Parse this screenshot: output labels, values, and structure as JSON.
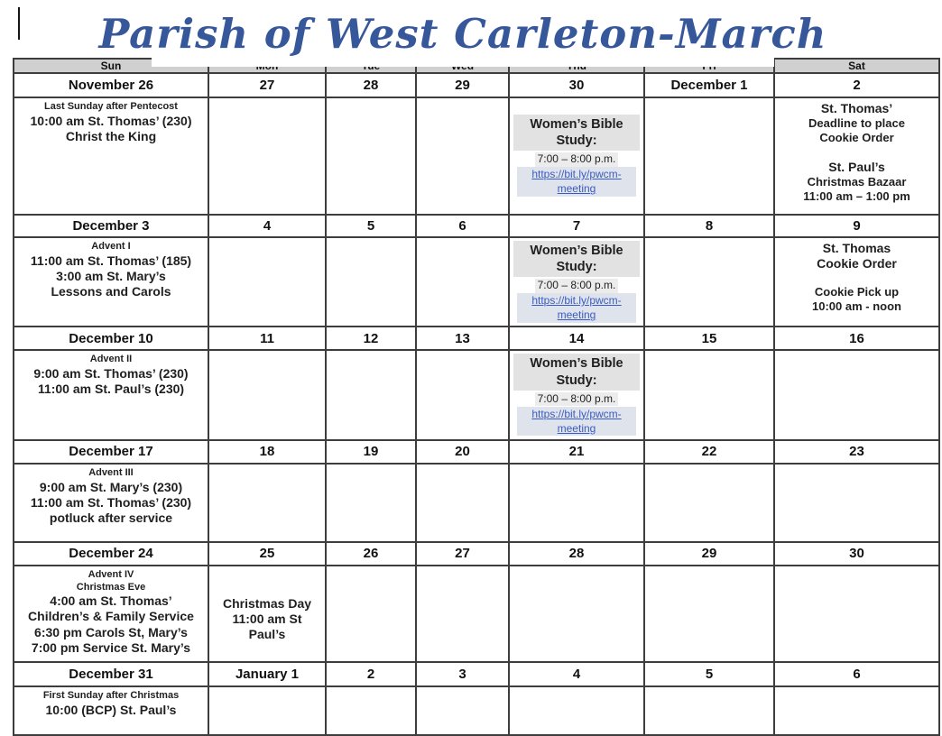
{
  "title": "Parish of West Carleton-March",
  "day_headers": [
    "Sun",
    "Mon",
    "Tue",
    "Wed",
    "Thu",
    "Fri",
    "Sat"
  ],
  "colors": {
    "title_blue": "#36589a",
    "link_blue": "#3a5cc0",
    "header_gray": "#d0d0d0",
    "highlight_gray": "#e2e2e2"
  },
  "weeks": [
    {
      "dates": [
        "November 26",
        "27",
        "28",
        "29",
        "30",
        "December 1",
        "2"
      ],
      "cells": [
        {
          "lines": [
            {
              "t": "Last Sunday after Pentecost",
              "s": "sub"
            },
            {
              "t": "10:00 am St. Thomas’ (230)",
              "s": "event"
            },
            {
              "t": "Christ the King",
              "s": "event"
            }
          ]
        },
        {
          "lines": []
        },
        {
          "lines": []
        },
        {
          "lines": []
        },
        {
          "lines": [
            {
              "t": "",
              "s": "blank"
            },
            {
              "t": "Women’s Bible Study:",
              "s": "wbs"
            },
            {
              "t": "7:00 – 8:00 p.m.",
              "s": "time"
            },
            {
              "t": "https://bit.ly/pwcm-meeting",
              "s": "link"
            }
          ]
        },
        {
          "lines": []
        },
        {
          "lines": [
            {
              "t": "St. Thomas’",
              "s": "event"
            },
            {
              "t": "Deadline to place",
              "s": "event-sm"
            },
            {
              "t": "Cookie Order",
              "s": "event-sm"
            },
            {
              "t": "",
              "s": "blank"
            },
            {
              "t": "St. Paul’s",
              "s": "event"
            },
            {
              "t": "Christmas Bazaar",
              "s": "event-sm"
            },
            {
              "t": "11:00 am – 1:00 pm",
              "s": "event-sm"
            }
          ]
        }
      ]
    },
    {
      "dates": [
        "December 3",
        "4",
        "5",
        "6",
        "7",
        "8",
        "9"
      ],
      "cells": [
        {
          "lines": [
            {
              "t": "Advent I",
              "s": "sub"
            },
            {
              "t": "11:00 am St. Thomas’ (185)",
              "s": "event"
            },
            {
              "t": "3:00 am St. Mary’s",
              "s": "event"
            },
            {
              "t": "Lessons and Carols",
              "s": "event"
            }
          ]
        },
        {
          "lines": []
        },
        {
          "lines": []
        },
        {
          "lines": []
        },
        {
          "lines": [
            {
              "t": "Women’s Bible Study:",
              "s": "wbs"
            },
            {
              "t": "7:00 – 8:00 p.m.",
              "s": "time"
            },
            {
              "t": "https://bit.ly/pwcm-meeting",
              "s": "link"
            }
          ]
        },
        {
          "lines": []
        },
        {
          "lines": [
            {
              "t": "St. Thomas",
              "s": "event"
            },
            {
              "t": "Cookie Order",
              "s": "event"
            },
            {
              "t": "",
              "s": "blank"
            },
            {
              "t": "Cookie Pick up",
              "s": "event-sm"
            },
            {
              "t": "10:00 am - noon",
              "s": "event-sm"
            }
          ]
        }
      ]
    },
    {
      "dates": [
        "December 10",
        "11",
        "12",
        "13",
        "14",
        "15",
        "16"
      ],
      "cells": [
        {
          "lines": [
            {
              "t": "Advent II",
              "s": "sub"
            },
            {
              "t": "9:00 am St. Thomas’ (230)",
              "s": "event"
            },
            {
              "t": "11:00 am St. Paul’s (230)",
              "s": "event"
            }
          ]
        },
        {
          "lines": []
        },
        {
          "lines": []
        },
        {
          "lines": []
        },
        {
          "lines": [
            {
              "t": "Women’s Bible Study:",
              "s": "wbs"
            },
            {
              "t": "7:00 – 8:00 p.m.",
              "s": "time"
            },
            {
              "t": "https://bit.ly/pwcm-meeting",
              "s": "link"
            }
          ]
        },
        {
          "lines": []
        },
        {
          "lines": []
        }
      ]
    },
    {
      "dates": [
        "December 17",
        "18",
        "19",
        "20",
        "21",
        "22",
        "23"
      ],
      "cells": [
        {
          "lines": [
            {
              "t": "Advent III",
              "s": "sub"
            },
            {
              "t": "9:00 am St. Mary’s (230)",
              "s": "event"
            },
            {
              "t": "11:00 am St. Thomas’ (230)",
              "s": "event"
            },
            {
              "t": "potluck after service",
              "s": "event"
            }
          ]
        },
        {
          "lines": []
        },
        {
          "lines": []
        },
        {
          "lines": []
        },
        {
          "lines": []
        },
        {
          "lines": []
        },
        {
          "lines": []
        }
      ]
    },
    {
      "dates": [
        "December 24",
        "25",
        "26",
        "27",
        "28",
        "29",
        "30"
      ],
      "cells": [
        {
          "lines": [
            {
              "t": "Advent IV",
              "s": "sub"
            },
            {
              "t": "Christmas Eve",
              "s": "sub"
            },
            {
              "t": "4:00 am St. Thomas’",
              "s": "event"
            },
            {
              "t": "Children’s & Family Service",
              "s": "event"
            },
            {
              "t": "6:30 pm Carols St, Mary’s",
              "s": "event"
            },
            {
              "t": "7:00 pm Service St. Mary’s",
              "s": "event"
            }
          ]
        },
        {
          "lines": [
            {
              "t": "",
              "s": "blank"
            },
            {
              "t": "",
              "s": "blank"
            },
            {
              "t": "Christmas Day",
              "s": "event"
            },
            {
              "t": "11:00 am St",
              "s": "event"
            },
            {
              "t": "Paul’s",
              "s": "event"
            }
          ]
        },
        {
          "lines": []
        },
        {
          "lines": []
        },
        {
          "lines": []
        },
        {
          "lines": []
        },
        {
          "lines": []
        }
      ]
    },
    {
      "dates": [
        "December 31",
        "January 1",
        "2",
        "3",
        "4",
        "5",
        "6"
      ],
      "cells": [
        {
          "lines": [
            {
              "t": "First Sunday after Christmas",
              "s": "sub"
            },
            {
              "t": "10:00 (BCP) St. Paul’s",
              "s": "event"
            }
          ]
        },
        {
          "lines": []
        },
        {
          "lines": []
        },
        {
          "lines": []
        },
        {
          "lines": []
        },
        {
          "lines": []
        },
        {
          "lines": []
        }
      ]
    }
  ]
}
